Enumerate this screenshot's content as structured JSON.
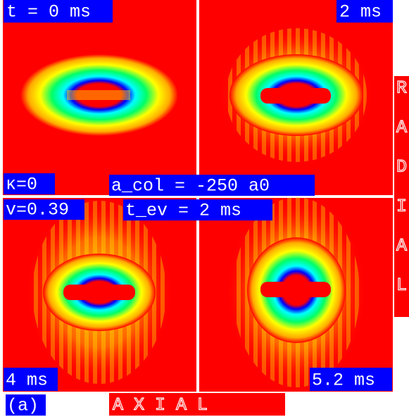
{
  "panels": {
    "time_labels": [
      "t = 0 ms",
      "2 ms",
      "4 ms",
      "5.2 ms"
    ],
    "kappa": "κ=0",
    "a_col": "a_col = -250 a0",
    "v": "v=0.39",
    "t_ev": "t_ev = 2 ms",
    "panel_tag": "(a)",
    "axial": "A X I A L",
    "radial": [
      "R",
      "A",
      "D",
      "I",
      "A",
      "L"
    ]
  }
}
